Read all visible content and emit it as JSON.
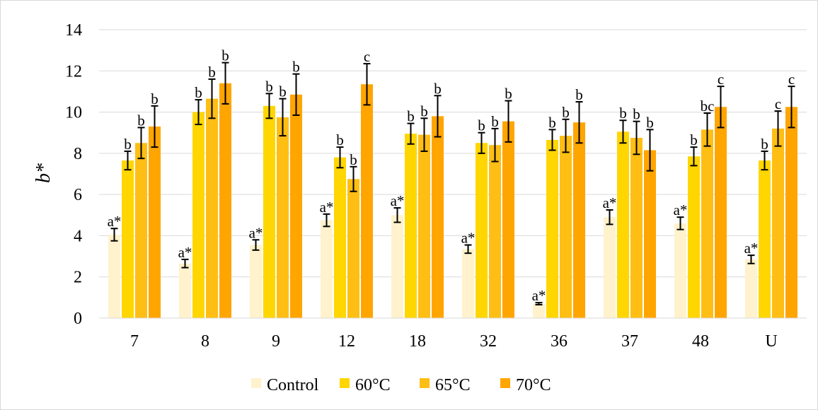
{
  "chart_data": {
    "type": "bar",
    "title": "",
    "xlabel": "",
    "ylabel": "b*",
    "ylim": [
      0,
      14
    ],
    "yticks": [
      "0",
      "2",
      "4",
      "6",
      "8",
      "10",
      "12",
      "14"
    ],
    "grid": true,
    "legend": "bottom",
    "categories": [
      "7",
      "8",
      "9",
      "12",
      "18",
      "32",
      "36",
      "37",
      "48",
      "U"
    ],
    "series": [
      {
        "name": "Control",
        "color": "#fff2cc",
        "values": [
          4.05,
          2.65,
          3.55,
          4.75,
          5.0,
          3.35,
          0.7,
          4.9,
          4.6,
          2.85
        ],
        "errors": [
          0.3,
          0.2,
          0.25,
          0.3,
          0.35,
          0.2,
          0.05,
          0.35,
          0.3,
          0.2
        ],
        "labels": [
          "a*",
          "a*",
          "a*",
          "a*",
          "a*",
          "a*",
          "a*",
          "a*",
          "a*",
          "a*"
        ]
      },
      {
        "name": "60°C",
        "color": "#ffd600",
        "values": [
          7.65,
          10.0,
          10.3,
          7.8,
          8.95,
          8.5,
          8.65,
          9.05,
          7.85,
          7.65
        ],
        "errors": [
          0.45,
          0.6,
          0.6,
          0.5,
          0.5,
          0.5,
          0.5,
          0.55,
          0.45,
          0.45
        ],
        "labels": [
          "b",
          "b",
          "b",
          "b",
          "b",
          "b",
          "b",
          "b",
          "b",
          "b"
        ]
      },
      {
        "name": "65°C",
        "color": "#ffbe14",
        "values": [
          8.5,
          10.65,
          9.75,
          6.75,
          8.9,
          8.4,
          8.85,
          8.75,
          9.15,
          9.2
        ],
        "errors": [
          0.75,
          0.95,
          0.9,
          0.6,
          0.8,
          0.8,
          0.8,
          0.8,
          0.8,
          0.85
        ],
        "labels": [
          "b",
          "b",
          "b",
          "b",
          "b",
          "b",
          "b",
          "b",
          "bc",
          "c"
        ]
      },
      {
        "name": "70°C",
        "color": "#ffa500",
        "values": [
          9.3,
          11.4,
          10.85,
          11.35,
          9.8,
          9.55,
          9.5,
          8.15,
          10.25,
          10.25
        ],
        "errors": [
          1.0,
          1.0,
          1.0,
          1.0,
          1.0,
          1.0,
          1.0,
          1.0,
          1.0,
          1.0
        ],
        "labels": [
          "b",
          "b",
          "b",
          "c",
          "b",
          "b",
          "b",
          "b",
          "c",
          "c"
        ]
      }
    ]
  }
}
